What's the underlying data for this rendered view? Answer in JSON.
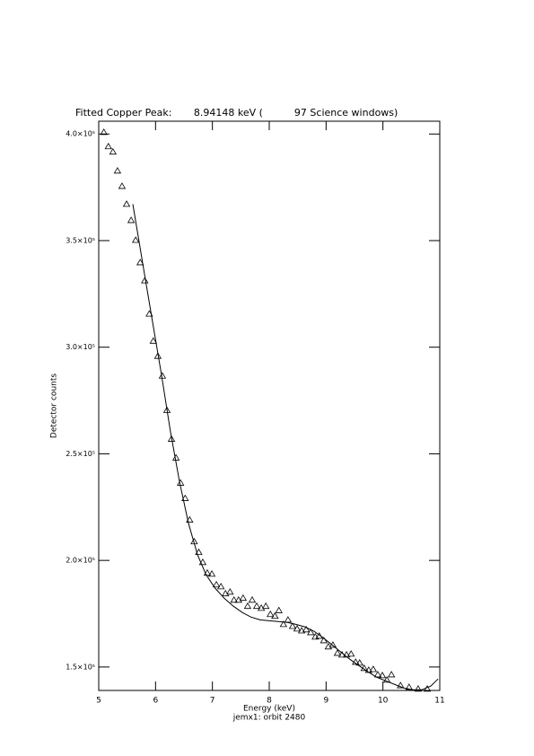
{
  "chart_data": {
    "type": "scatter",
    "title": "Fitted Copper Peak:       8.94148 keV (          97 Science windows)",
    "x_label": "Energy (keV)",
    "subtitle": "jemx1: orbit 2480",
    "y_label": "Detector counts",
    "xlim": [
      5,
      11
    ],
    "xticks": [
      5,
      6,
      7,
      8,
      9,
      10,
      11
    ],
    "ylim": [
      139000,
      406000
    ],
    "yticks": [
      {
        "value": 150000,
        "label": "1.5×10⁵"
      },
      {
        "value": 200000,
        "label": "2.0×10⁵"
      },
      {
        "value": 250000,
        "label": "2.5×10⁵"
      },
      {
        "value": 300000,
        "label": "3.0×10⁵"
      },
      {
        "value": 350000,
        "label": "3.5×10⁵"
      },
      {
        "value": 400000,
        "label": "4.0×10⁵"
      }
    ],
    "series": [
      {
        "type": "scatter",
        "color": "#000000",
        "x": [
          5.09,
          5.17,
          5.25,
          5.33,
          5.41,
          5.49,
          5.57,
          5.65,
          5.73,
          5.81,
          5.89,
          5.96,
          6.04,
          6.12,
          6.2,
          6.28,
          6.36,
          6.44,
          6.52,
          6.6,
          6.68,
          6.76,
          6.83,
          6.91,
          6.99,
          7.07,
          7.15,
          7.23,
          7.31,
          7.38,
          7.46,
          7.54,
          7.62,
          7.7,
          7.78,
          7.86,
          7.94,
          8.02,
          8.1,
          8.17,
          8.25,
          8.33,
          8.41,
          8.49,
          8.57,
          8.65,
          8.73,
          8.81,
          8.88,
          8.96,
          9.04,
          9.12,
          9.2,
          9.28,
          9.36,
          9.44,
          9.52,
          9.59,
          9.67,
          9.75,
          9.83,
          9.91,
          9.99,
          10.07,
          10.15,
          10.31,
          10.46,
          10.62,
          10.78
        ],
        "values": [
          400800,
          394100,
          391600,
          382700,
          375500,
          367100,
          359500,
          350200,
          339700,
          331200,
          315600,
          302900,
          295800,
          286500,
          270400,
          256900,
          248100,
          236300,
          229100,
          219000,
          208800,
          203800,
          199100,
          194100,
          193600,
          188600,
          187700,
          184400,
          185200,
          181400,
          181400,
          182300,
          178500,
          181400,
          178500,
          177600,
          178500,
          174700,
          173900,
          176500,
          170000,
          172100,
          169100,
          167900,
          167000,
          167500,
          166200,
          164100,
          164500,
          162400,
          159500,
          160300,
          156500,
          155700,
          155700,
          156100,
          152300,
          151900,
          149400,
          148500,
          148900,
          146400,
          146000,
          143900,
          146400,
          141300,
          140500,
          139700,
          139700
        ]
      },
      {
        "type": "line",
        "color": "#000000",
        "x": [
          5.6,
          5.79,
          5.95,
          6.11,
          6.26,
          6.42,
          6.58,
          6.74,
          6.89,
          7.05,
          7.21,
          7.37,
          7.53,
          7.68,
          7.84,
          8.0,
          8.16,
          8.32,
          8.47,
          8.63,
          8.79,
          8.95,
          9.11,
          9.26,
          9.42,
          9.58,
          9.74,
          9.89,
          10.05,
          10.21,
          10.37,
          10.53,
          10.68,
          10.84,
          10.97
        ],
        "values": [
          367100,
          336700,
          311400,
          286100,
          260700,
          237100,
          217300,
          202500,
          193200,
          186900,
          182200,
          178500,
          175500,
          173400,
          172100,
          171700,
          171300,
          170900,
          170000,
          168800,
          166700,
          163700,
          160300,
          157000,
          153600,
          150600,
          147700,
          145200,
          143500,
          141800,
          140100,
          139300,
          139300,
          141000,
          144400
        ]
      }
    ]
  }
}
